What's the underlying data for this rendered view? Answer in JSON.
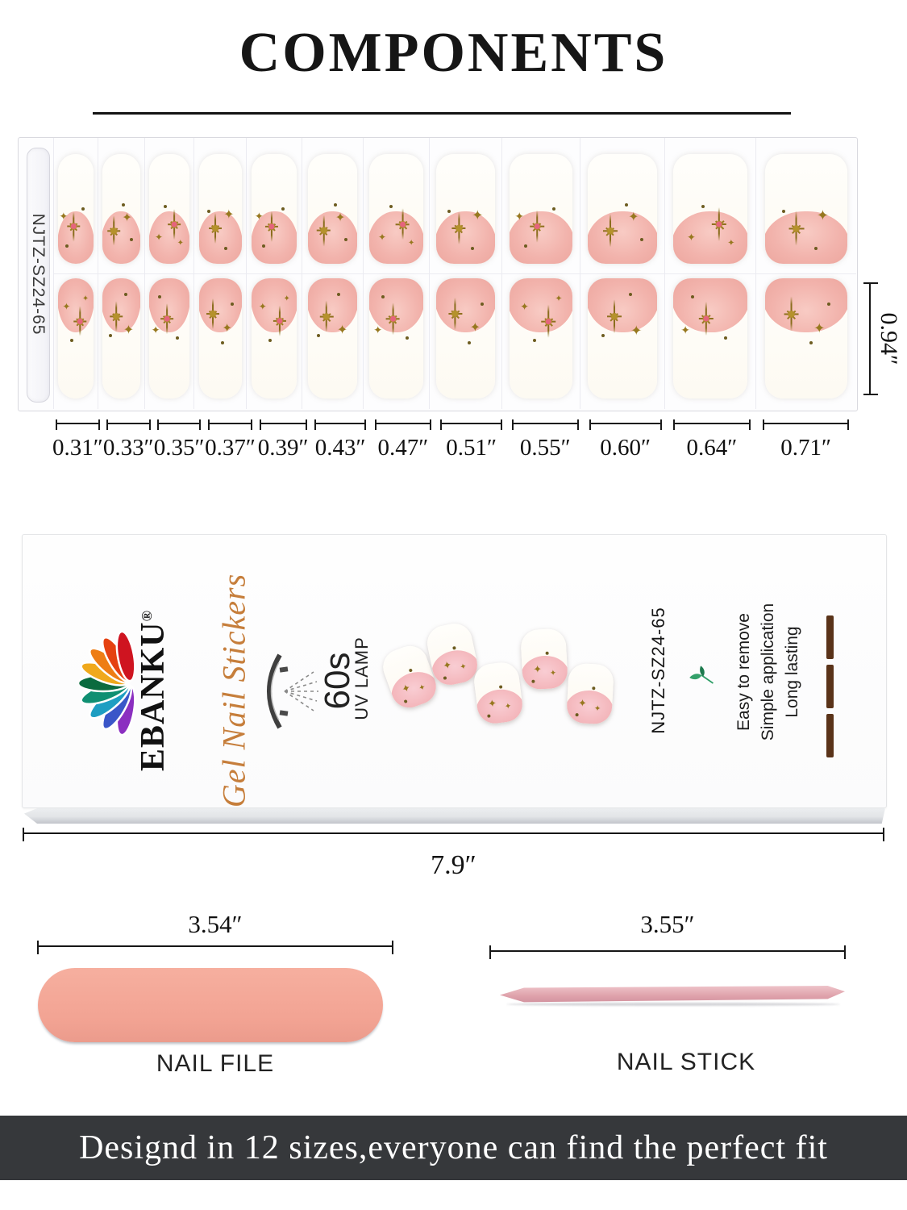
{
  "header": {
    "title": "COMPONENTS"
  },
  "sheet": {
    "code_label": "NJTZ-SZ24-65",
    "row_height_label": "0.94″",
    "sizes": [
      "0.31″",
      "0.33″",
      "0.35″",
      "0.37″",
      "0.39″",
      "0.43″",
      "0.47″",
      "0.51″",
      "0.55″",
      "0.60″",
      "0.64″",
      "0.71″"
    ]
  },
  "box": {
    "brand": "EBANKU",
    "registered_mark": "®",
    "product_name": "Gel Nail Stickers",
    "lamp_time": "60s",
    "lamp_label": "UV LAMP",
    "code": "NJTZ-SZ24-65",
    "features": [
      "Easy to remove",
      "Simple application",
      "Long lasting"
    ],
    "width_label": "7.9″"
  },
  "tools": {
    "file": {
      "length_label": "3.54″",
      "name": "NAIL FILE"
    },
    "stick": {
      "length_label": "3.55″",
      "name": "NAIL STICK"
    }
  },
  "footer": {
    "tagline": "Designd in 12 sizes,everyone can find the perfect fit"
  },
  "icons": {
    "sparkle_4point": "✦",
    "names": [
      "uv-lamp-icon",
      "sprout-icon",
      "rainbow-petal-logo",
      "sparkle-8ray-icon",
      "sparkle-4point-icon"
    ]
  },
  "colors": {
    "nail_pink": "#f2b3ac",
    "gold_star": "#97781f",
    "pink_star_center": "#e5647d",
    "script_orange": "#c67e3b",
    "file_pink": "#f2a393",
    "stick_pink": "#dfa2ab",
    "banner_bg": "#36383b"
  }
}
